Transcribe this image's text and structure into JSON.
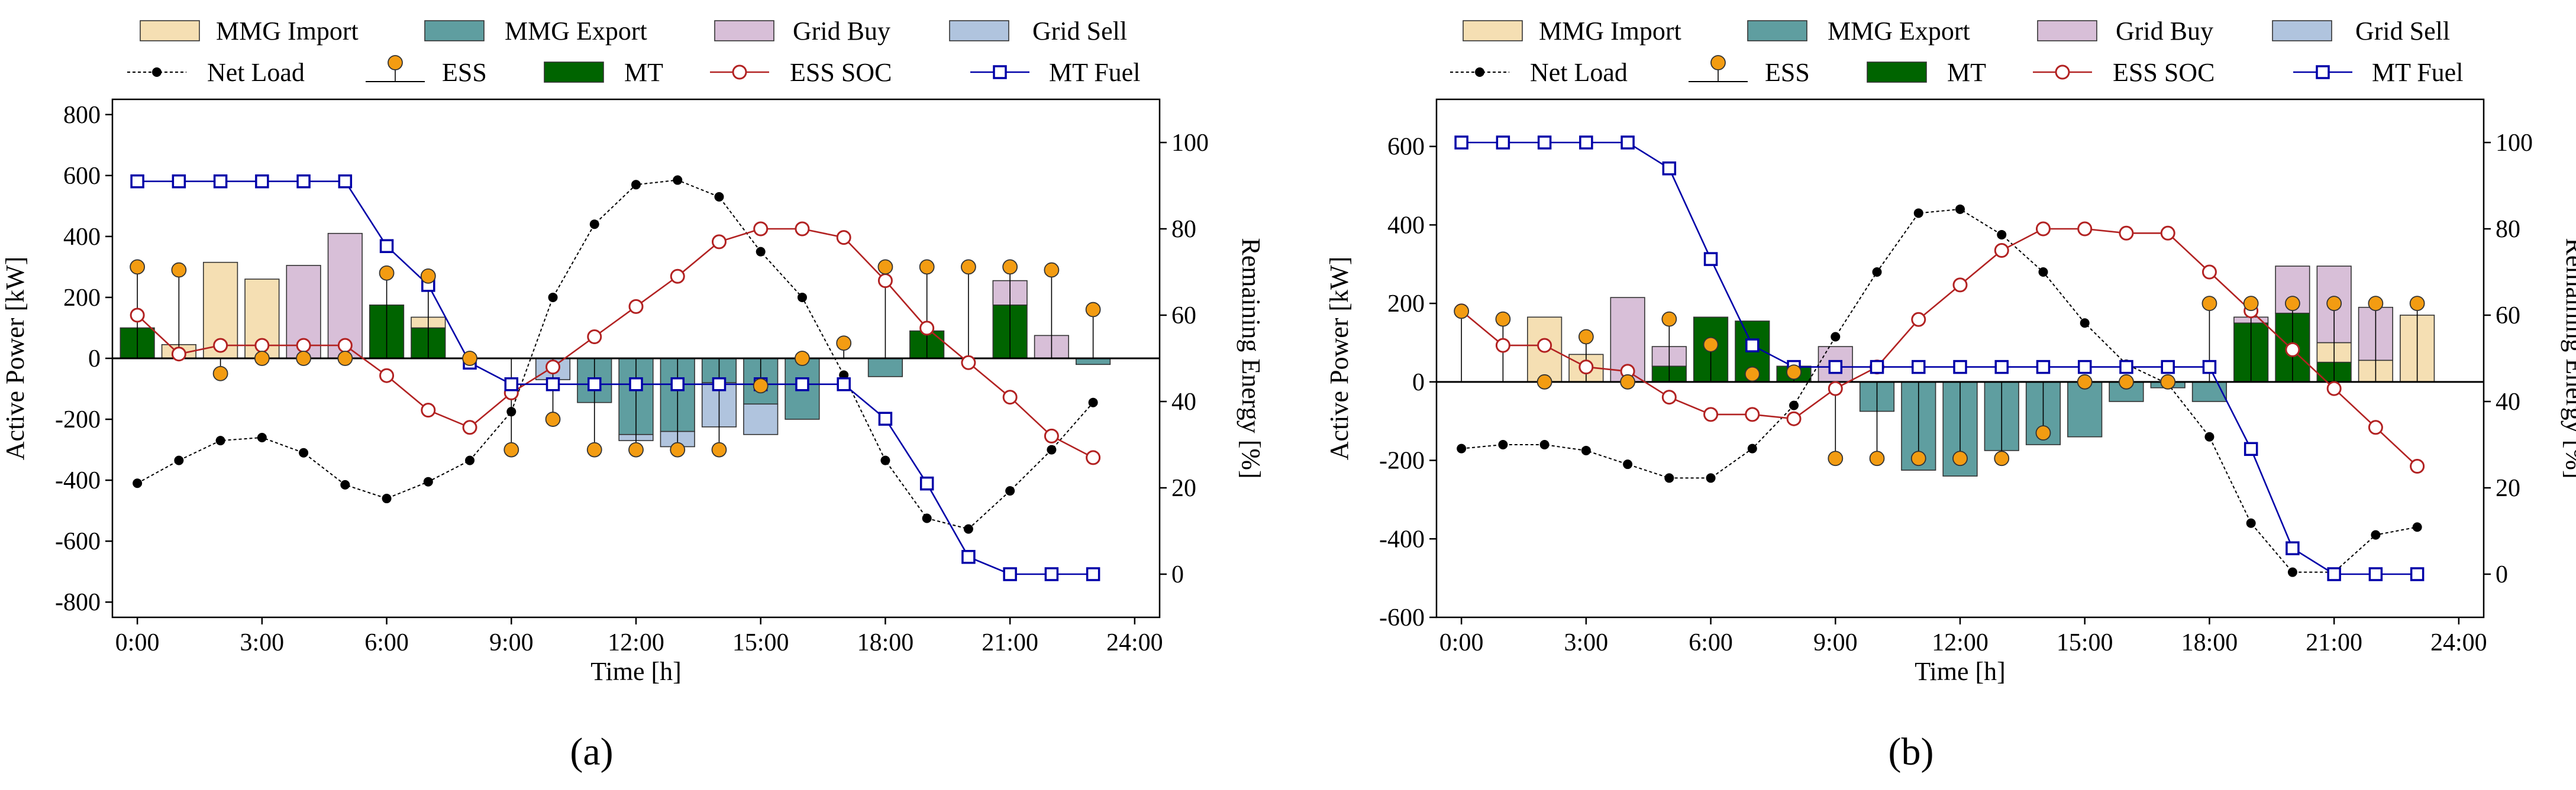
{
  "colors": {
    "mmg_import": "#f5dfb3",
    "mmg_export": "#5f9ea0",
    "grid_buy": "#d8bfd8",
    "grid_sell": "#b0c4de",
    "net_load": "#000000",
    "ess_marker": "#f39c12",
    "mt": "#006400",
    "ess_soc": "#b22222",
    "mt_fuel": "#0000a8",
    "bar_edge": "#333333"
  },
  "legend": {
    "mmg_import": "MMG Import",
    "mmg_export": "MMG Export",
    "grid_buy": "Grid Buy",
    "grid_sell": "Grid Sell",
    "net_load": "Net Load",
    "ess": "ESS",
    "mt": "MT",
    "ess_soc": "ESS SOC",
    "mt_fuel": "MT Fuel"
  },
  "chart_data": [
    {
      "type": "bar",
      "caption": "(a)",
      "xlabel": "Time [h]",
      "ylabel": "Active Power [kW]",
      "ylabel_right": "Remaining Energy [%]",
      "xlim": [
        -0.6,
        24.6
      ],
      "ylim": [
        -850,
        850
      ],
      "ylim_right": [
        -10,
        110
      ],
      "xticks": [
        0,
        3,
        6,
        9,
        12,
        15,
        18,
        21,
        24
      ],
      "xtick_labels": [
        "0:00",
        "3:00",
        "6:00",
        "9:00",
        "12:00",
        "15:00",
        "18:00",
        "21:00",
        "24:00"
      ],
      "yticks": [
        -800,
        -600,
        -400,
        -200,
        0,
        200,
        400,
        600,
        800
      ],
      "yticks_right": [
        0,
        20,
        40,
        60,
        80,
        100
      ],
      "hours": [
        0,
        1,
        2,
        3,
        4,
        5,
        6,
        7,
        8,
        9,
        10,
        11,
        12,
        13,
        14,
        15,
        16,
        17,
        18,
        19,
        20,
        21,
        22,
        23
      ],
      "series": [
        {
          "name": "MT",
          "values": [
            100,
            0,
            0,
            0,
            0,
            0,
            175,
            100,
            0,
            0,
            0,
            0,
            0,
            0,
            0,
            0,
            0,
            0,
            0,
            90,
            0,
            175,
            0,
            0
          ]
        },
        {
          "name": "MMG Import",
          "values": [
            0,
            45,
            315,
            260,
            0,
            0,
            0,
            35,
            0,
            0,
            0,
            0,
            0,
            0,
            0,
            0,
            0,
            0,
            0,
            0,
            0,
            0,
            0,
            0
          ]
        },
        {
          "name": "Grid Buy",
          "values": [
            0,
            0,
            0,
            0,
            305,
            410,
            0,
            0,
            0,
            0,
            0,
            0,
            0,
            0,
            0,
            0,
            0,
            0,
            0,
            0,
            0,
            80,
            75,
            0
          ]
        },
        {
          "name": "MMG Export",
          "values": [
            0,
            0,
            0,
            0,
            0,
            0,
            0,
            0,
            0,
            0,
            0,
            -145,
            -250,
            -240,
            -80,
            -150,
            -200,
            0,
            -60,
            0,
            0,
            0,
            0,
            -20
          ]
        },
        {
          "name": "Grid Sell",
          "values": [
            0,
            0,
            0,
            0,
            0,
            0,
            0,
            0,
            0,
            0,
            -70,
            0,
            -20,
            -50,
            -145,
            -100,
            0,
            0,
            0,
            0,
            0,
            0,
            0,
            0
          ]
        },
        {
          "name": "ESS",
          "values": [
            300,
            290,
            -50,
            0,
            0,
            0,
            280,
            270,
            0,
            -300,
            -200,
            -300,
            -300,
            -300,
            -300,
            -90,
            0,
            50,
            300,
            300,
            300,
            300,
            290,
            160
          ]
        },
        {
          "name": "Net Load",
          "values": [
            -410,
            -335,
            -270,
            -260,
            -310,
            -415,
            -460,
            -405,
            -335,
            -175,
            200,
            440,
            570,
            585,
            530,
            350,
            200,
            -55,
            -335,
            -525,
            -560,
            -435,
            -300,
            -145
          ]
        },
        {
          "name": "ESS SOC",
          "axis": "right",
          "values": [
            60,
            51,
            53,
            53,
            53,
            53,
            46,
            38,
            34,
            42,
            48,
            55,
            62,
            69,
            77,
            80,
            80,
            78,
            68,
            57,
            49,
            41,
            32,
            27
          ]
        },
        {
          "name": "MT Fuel",
          "axis": "right",
          "values": [
            91,
            91,
            91,
            91,
            91,
            91,
            76,
            67,
            49,
            44,
            44,
            44,
            44,
            44,
            44,
            44,
            44,
            44,
            36,
            21,
            4,
            0,
            0,
            0
          ]
        }
      ]
    },
    {
      "type": "bar",
      "caption": "(b)",
      "xlabel": "Time [h]",
      "ylabel": "Active Power [kW]",
      "ylabel_right": "Remaining Energy [%]",
      "xlim": [
        -0.6,
        24.6
      ],
      "ylim": [
        -600,
        720
      ],
      "ylim_right": [
        -10,
        110
      ],
      "xticks": [
        0,
        3,
        6,
        9,
        12,
        15,
        18,
        21,
        24
      ],
      "xtick_labels": [
        "0:00",
        "3:00",
        "6:00",
        "9:00",
        "12:00",
        "15:00",
        "18:00",
        "21:00",
        "24:00"
      ],
      "yticks": [
        -600,
        -400,
        -200,
        0,
        200,
        400,
        600
      ],
      "yticks_right": [
        0,
        20,
        40,
        60,
        80,
        100
      ],
      "hours": [
        0,
        1,
        2,
        3,
        4,
        5,
        6,
        7,
        8,
        9,
        10,
        11,
        12,
        13,
        14,
        15,
        16,
        17,
        18,
        19,
        20,
        21,
        22,
        23
      ],
      "series": [
        {
          "name": "MT",
          "values": [
            0,
            0,
            0,
            0,
            0,
            40,
            165,
            155,
            40,
            0,
            0,
            0,
            0,
            0,
            0,
            0,
            0,
            0,
            0,
            150,
            175,
            50,
            0,
            0
          ]
        },
        {
          "name": "MMG Import",
          "values": [
            0,
            0,
            165,
            70,
            0,
            0,
            0,
            0,
            0,
            0,
            0,
            0,
            0,
            0,
            0,
            0,
            0,
            0,
            0,
            0,
            0,
            50,
            55,
            170
          ]
        },
        {
          "name": "Grid Buy",
          "values": [
            0,
            0,
            0,
            0,
            215,
            50,
            0,
            0,
            0,
            90,
            0,
            0,
            0,
            0,
            0,
            0,
            0,
            0,
            0,
            15,
            120,
            195,
            135,
            0
          ]
        },
        {
          "name": "MMG Export",
          "values": [
            0,
            0,
            0,
            0,
            0,
            0,
            0,
            0,
            0,
            0,
            -75,
            -225,
            -240,
            -175,
            -160,
            -140,
            -50,
            -15,
            -50,
            0,
            0,
            0,
            0,
            0
          ]
        },
        {
          "name": "Grid Sell",
          "values": [
            0,
            0,
            0,
            0,
            0,
            0,
            0,
            0,
            0,
            0,
            0,
            0,
            0,
            0,
            0,
            0,
            0,
            0,
            0,
            0,
            0,
            0,
            0,
            0
          ]
        },
        {
          "name": "ESS",
          "values": [
            180,
            160,
            0,
            115,
            0,
            160,
            95,
            20,
            25,
            -195,
            -195,
            -195,
            -195,
            -195,
            -130,
            0,
            0,
            0,
            200,
            200,
            200,
            200,
            200,
            200
          ]
        },
        {
          "name": "Net Load",
          "values": [
            -170,
            -160,
            -160,
            -175,
            -210,
            -245,
            -245,
            -170,
            -60,
            115,
            280,
            430,
            440,
            375,
            280,
            150,
            45,
            -5,
            -140,
            -360,
            -485,
            -485,
            -390,
            -370
          ]
        },
        {
          "name": "ESS SOC",
          "axis": "right",
          "values": [
            61,
            53,
            53,
            48,
            47,
            41,
            37,
            37,
            36,
            43,
            48,
            59,
            67,
            75,
            80,
            80,
            79,
            79,
            70,
            61,
            52,
            43,
            34,
            25
          ]
        },
        {
          "name": "MT Fuel",
          "axis": "right",
          "values": [
            100,
            100,
            100,
            100,
            100,
            94,
            73,
            53,
            48,
            48,
            48,
            48,
            48,
            48,
            48,
            48,
            48,
            48,
            48,
            29,
            6,
            0,
            0,
            0
          ]
        }
      ]
    }
  ]
}
